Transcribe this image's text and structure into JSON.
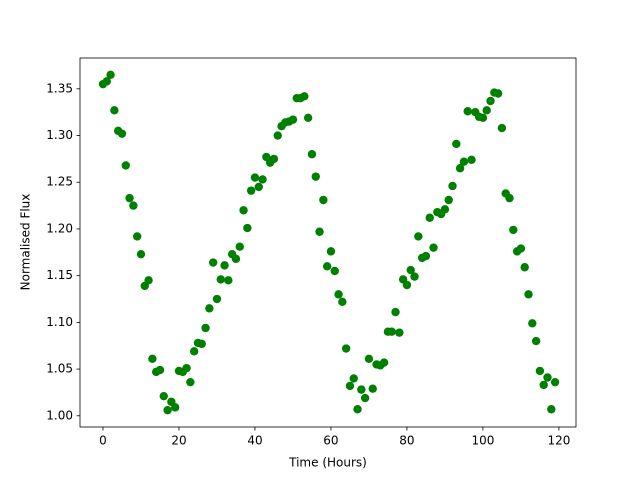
{
  "chart_data": {
    "type": "scatter",
    "xlabel": "Time (Hours)",
    "ylabel": "Normalised Flux",
    "color": "#008000",
    "x": [
      0,
      1,
      2,
      3,
      4,
      5,
      6,
      7,
      8,
      9,
      10,
      11,
      12,
      13,
      14,
      15,
      16,
      17,
      18,
      19,
      20,
      21,
      22,
      23,
      24,
      25,
      26,
      27,
      28,
      29,
      30,
      31,
      32,
      33,
      34,
      35,
      36,
      37,
      38,
      39,
      40,
      41,
      42,
      43,
      44,
      45,
      46,
      47,
      48,
      49,
      50,
      51,
      52,
      53,
      54,
      55,
      56,
      57,
      58,
      59,
      60,
      61,
      62,
      63,
      64,
      65,
      66,
      67,
      68,
      69,
      70,
      71,
      72,
      73,
      74,
      75,
      76,
      77,
      78,
      79,
      80,
      81,
      82,
      83,
      84,
      85,
      86,
      87,
      88,
      89,
      90,
      91,
      92,
      93,
      94,
      95,
      96,
      97,
      98,
      99,
      100,
      101,
      102,
      103,
      104,
      105,
      106,
      107,
      108,
      109,
      110,
      111,
      112,
      113,
      114,
      115,
      116,
      117,
      118,
      119
    ],
    "values": [
      1.355,
      1.358,
      1.365,
      1.327,
      1.305,
      1.302,
      1.268,
      1.233,
      1.225,
      1.192,
      1.173,
      1.139,
      1.145,
      1.061,
      1.047,
      1.049,
      1.021,
      1.006,
      1.015,
      1.009,
      1.048,
      1.047,
      1.051,
      1.036,
      1.069,
      1.078,
      1.077,
      1.094,
      1.115,
      1.164,
      1.125,
      1.146,
      1.161,
      1.145,
      1.173,
      1.168,
      1.181,
      1.22,
      1.201,
      1.241,
      1.255,
      1.245,
      1.253,
      1.277,
      1.271,
      1.275,
      1.3,
      1.31,
      1.314,
      1.315,
      1.317,
      1.34,
      1.34,
      1.342,
      1.319,
      1.28,
      1.256,
      1.197,
      1.231,
      1.16,
      1.176,
      1.155,
      1.13,
      1.122,
      1.072,
      1.032,
      1.04,
      1.007,
      1.028,
      1.019,
      1.061,
      1.029,
      1.055,
      1.054,
      1.057,
      1.09,
      1.09,
      1.111,
      1.089,
      1.146,
      1.14,
      1.156,
      1.149,
      1.192,
      1.169,
      1.171,
      1.212,
      1.18,
      1.218,
      1.216,
      1.221,
      1.231,
      1.246,
      1.291,
      1.265,
      1.272,
      1.326,
      1.274,
      1.325,
      1.32,
      1.319,
      1.327,
      1.337,
      1.346,
      1.345,
      1.308,
      1.238,
      1.233,
      1.199,
      1.176,
      1.179,
      1.159,
      1.13,
      1.099,
      1.08,
      1.048,
      1.033,
      1.041,
      1.007,
      1.036
    ],
    "xlim": [
      -6.05,
      124.5
    ],
    "ylim": [
      0.988,
      1.383
    ],
    "xticks": [
      0,
      20,
      40,
      60,
      80,
      100,
      120
    ],
    "yticks": [
      {
        "value": 1.0,
        "label": "1.00"
      },
      {
        "value": 1.05,
        "label": "1.05"
      },
      {
        "value": 1.1,
        "label": "1.10"
      },
      {
        "value": 1.15,
        "label": "1.15"
      },
      {
        "value": 1.2,
        "label": "1.20"
      },
      {
        "value": 1.25,
        "label": "1.25"
      },
      {
        "value": 1.3,
        "label": "1.30"
      },
      {
        "value": 1.35,
        "label": "1.35"
      }
    ]
  }
}
